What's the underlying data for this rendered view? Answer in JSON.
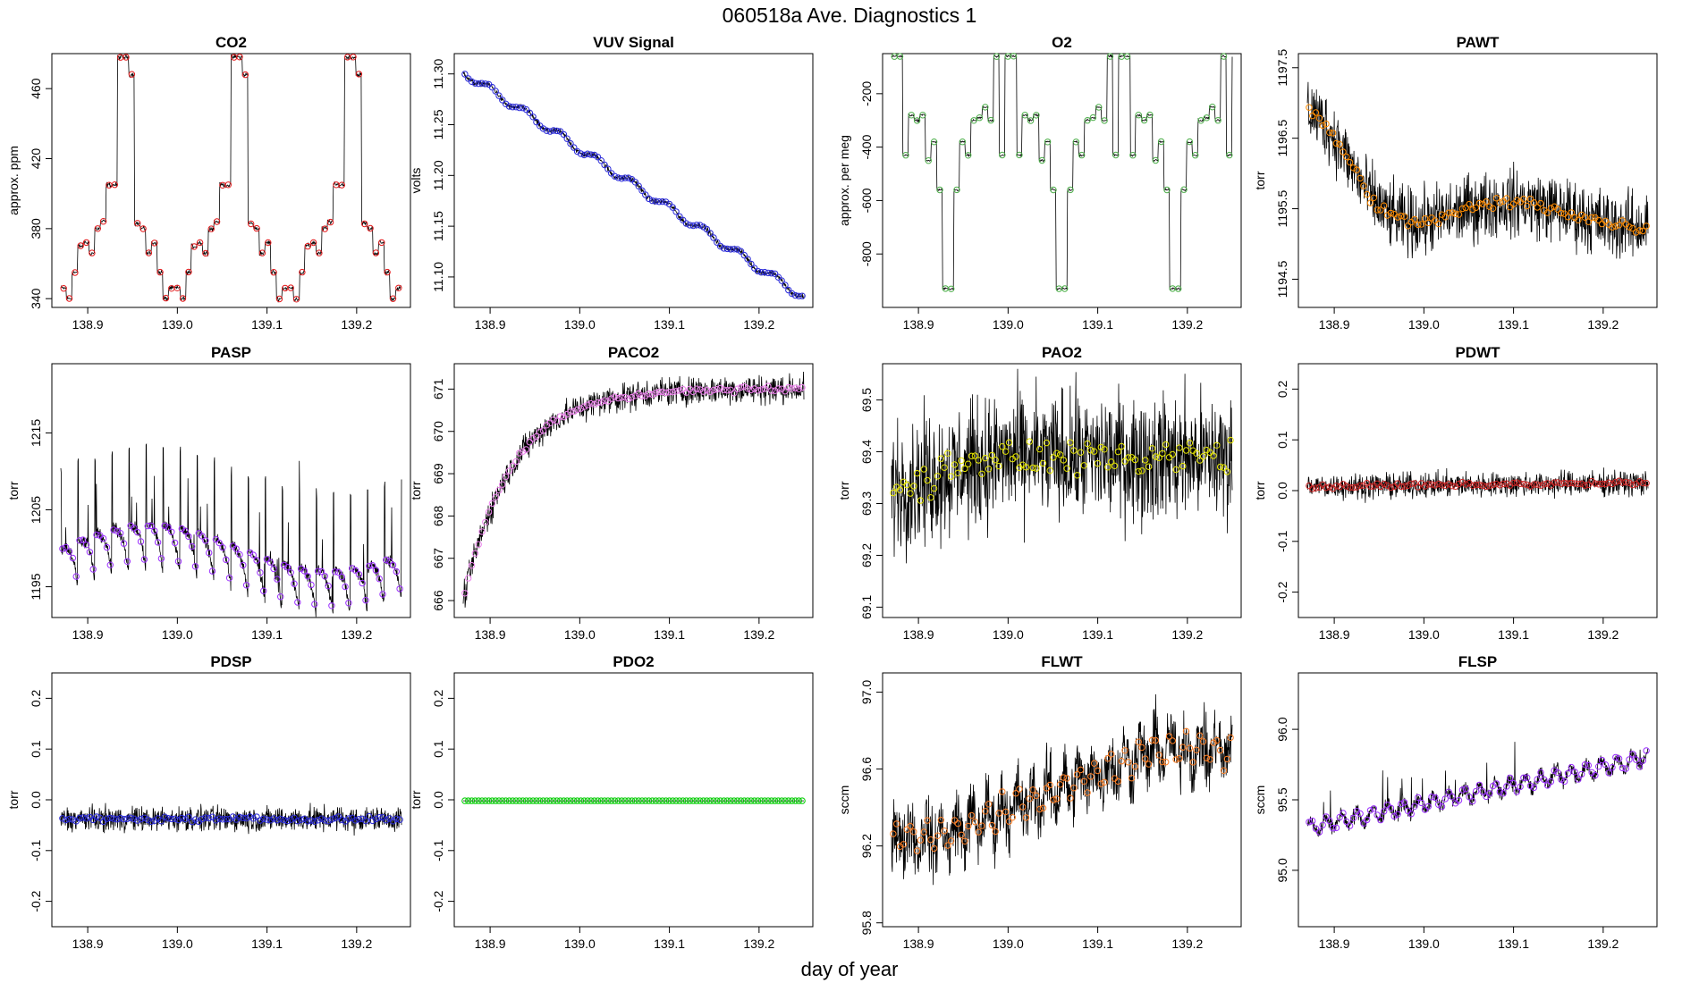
{
  "figure": {
    "title": "060518a   Ave. Diagnostics 1",
    "xlabel": "day of year"
  },
  "chart_data": [
    {
      "id": "co2",
      "title": "CO2",
      "type": "line",
      "ylabel": "approx. ppm",
      "xlim": [
        138.86,
        139.26
      ],
      "ylim": [
        335,
        480
      ],
      "xticks": [
        "138.9",
        "139.0",
        "139.1",
        "139.2"
      ],
      "yticks": [
        "340",
        "380",
        "420",
        "460"
      ],
      "marker_color": "#e41a1c",
      "model": "step",
      "steps": [
        346,
        340,
        355,
        370,
        372,
        366,
        380,
        384,
        405,
        405,
        478,
        478,
        468,
        383,
        380,
        366,
        372,
        355,
        340,
        346
      ],
      "noise": 1.0
    },
    {
      "id": "vuv",
      "title": "VUV Signal",
      "type": "line",
      "ylabel": "volts",
      "xlim": [
        138.86,
        139.26
      ],
      "ylim": [
        11.07,
        11.32
      ],
      "xticks": [
        "138.9",
        "139.0",
        "139.1",
        "139.2"
      ],
      "yticks": [
        "11.10",
        "11.15",
        "11.20",
        "11.25",
        "11.30"
      ],
      "marker_color": "#2b2bd9",
      "model": "linear",
      "y0": 11.302,
      "y1": 11.08,
      "noise": 0.002
    },
    {
      "id": "o2",
      "title": "O2",
      "type": "line",
      "ylabel": "approx. per meg",
      "xlim": [
        138.86,
        139.26
      ],
      "ylim": [
        -1000,
        -50
      ],
      "xticks": [
        "138.9",
        "139.0",
        "139.1",
        "139.2"
      ],
      "yticks": [
        "-200",
        "-400",
        "-600",
        "-800"
      ],
      "marker_color": "#4daf4a",
      "model": "step",
      "steps": [
        -60,
        -60,
        -430,
        -280,
        -300,
        -280,
        -450,
        -380,
        -560,
        -930,
        -930,
        -560,
        -380,
        -430,
        -300,
        -290,
        -250,
        -300,
        -60,
        -430
      ],
      "noise": 3
    },
    {
      "id": "pawt",
      "title": "PAWT",
      "type": "line",
      "ylabel": "torr",
      "xlim": [
        138.86,
        139.26
      ],
      "ylim": [
        1194.1,
        1197.7
      ],
      "xticks": [
        "138.9",
        "139.0",
        "139.1",
        "139.2"
      ],
      "yticks": [
        "1194.5",
        "1195.5",
        "1196.5",
        "1197.5"
      ],
      "marker_color": "#ff8c00",
      "model": "pawt",
      "noise": 0.35
    },
    {
      "id": "pasp",
      "title": "PASP",
      "type": "line",
      "ylabel": "torr",
      "xlim": [
        138.86,
        139.26
      ],
      "ylim": [
        1191,
        1224
      ],
      "xticks": [
        "138.9",
        "139.0",
        "139.1",
        "139.2"
      ],
      "yticks": [
        "1195",
        "1205",
        "1215"
      ],
      "marker_color": "#9b30ff",
      "model": "pasp",
      "noise": 0.6
    },
    {
      "id": "paco2",
      "title": "PACO2",
      "type": "line",
      "ylabel": "torr",
      "xlim": [
        138.86,
        139.26
      ],
      "ylim": [
        665.6,
        671.6
      ],
      "xticks": [
        "138.9",
        "139.0",
        "139.1",
        "139.2"
      ],
      "yticks": [
        "666",
        "667",
        "668",
        "669",
        "670",
        "671"
      ],
      "marker_color": "#ee82ee",
      "model": "exp",
      "y0": 666.0,
      "y1": 671.0,
      "k": 7,
      "noise": 0.25
    },
    {
      "id": "pao2",
      "title": "PAO2",
      "type": "line",
      "ylabel": "torr",
      "xlim": [
        138.86,
        139.26
      ],
      "ylim": [
        69.08,
        69.57
      ],
      "xticks": [
        "138.9",
        "139.0",
        "139.1",
        "139.2"
      ],
      "yticks": [
        "69.1",
        "69.2",
        "69.3",
        "69.4",
        "69.5"
      ],
      "marker_color": "#e6e600",
      "model": "pao2",
      "noise": 0.09
    },
    {
      "id": "pdwt",
      "title": "PDWT",
      "type": "line",
      "ylabel": "torr",
      "xlim": [
        138.86,
        139.26
      ],
      "ylim": [
        -0.25,
        0.25
      ],
      "xticks": [
        "138.9",
        "139.0",
        "139.1",
        "139.2"
      ],
      "yticks": [
        "-0.2",
        "-0.1",
        "0.0",
        "0.1",
        "0.2"
      ],
      "marker_color": "#cd2626",
      "model": "flat",
      "y0": 0.008,
      "y1": 0.015,
      "noise": 0.018
    },
    {
      "id": "pdsp",
      "title": "PDSP",
      "type": "line",
      "ylabel": "torr",
      "xlim": [
        138.86,
        139.26
      ],
      "ylim": [
        -0.25,
        0.25
      ],
      "xticks": [
        "138.9",
        "139.0",
        "139.1",
        "139.2"
      ],
      "yticks": [
        "-0.2",
        "-0.1",
        "0.0",
        "0.1",
        "0.2"
      ],
      "marker_color": "#2b2bd9",
      "model": "flat",
      "y0": -0.038,
      "y1": -0.038,
      "noise": 0.018
    },
    {
      "id": "pdo2",
      "title": "PDO2",
      "type": "line",
      "ylabel": "torr",
      "xlim": [
        138.86,
        139.26
      ],
      "ylim": [
        -0.25,
        0.25
      ],
      "xticks": [
        "138.9",
        "139.0",
        "139.1",
        "139.2"
      ],
      "yticks": [
        "-0.2",
        "-0.1",
        "0.0",
        "0.1",
        "0.2"
      ],
      "marker_color": "#00cc00",
      "model": "flat",
      "y0": -0.002,
      "y1": -0.002,
      "noise": 0.0
    },
    {
      "id": "flwt",
      "title": "FLWT",
      "type": "line",
      "ylabel": "sccm",
      "xlim": [
        138.86,
        139.26
      ],
      "ylim": [
        95.78,
        97.1
      ],
      "xticks": [
        "138.9",
        "139.0",
        "139.1",
        "139.2"
      ],
      "yticks": [
        "95.8",
        "96.2",
        "96.6",
        "97.0"
      ],
      "marker_color": "#ff7f24",
      "model": "flwt",
      "noise": 0.13
    },
    {
      "id": "flsp",
      "title": "FLSP",
      "type": "line",
      "ylabel": "sccm",
      "xlim": [
        138.86,
        139.26
      ],
      "ylim": [
        94.6,
        96.4
      ],
      "xticks": [
        "138.9",
        "139.0",
        "139.1",
        "139.2"
      ],
      "yticks": [
        "95.0",
        "95.5",
        "96.0"
      ],
      "marker_color": "#9b30ff",
      "model": "flsp",
      "noise": 0.04
    }
  ]
}
